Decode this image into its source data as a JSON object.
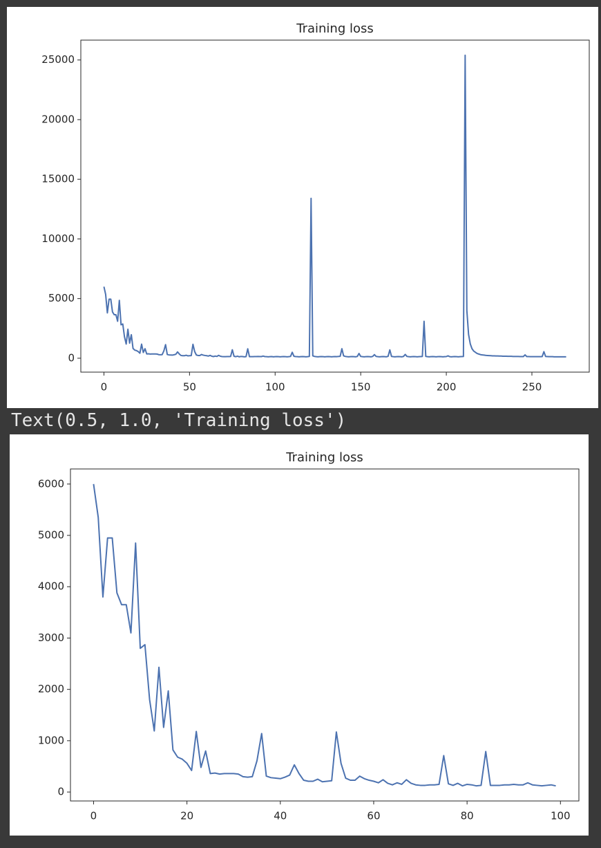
{
  "chart_data": [
    {
      "type": "line",
      "title": "Training loss",
      "color": "#4c72b0",
      "xlim": [
        -13.5,
        283.5
      ],
      "ylim": [
        -1165,
        26665
      ],
      "xticks": [
        0,
        50,
        100,
        150,
        200,
        250
      ],
      "yticks": [
        0,
        5000,
        10000,
        15000,
        20000,
        25000
      ],
      "x": [
        0,
        1,
        2,
        3,
        4,
        5,
        6,
        7,
        8,
        9,
        10,
        11,
        12,
        13,
        14,
        15,
        16,
        17,
        18,
        19,
        20,
        21,
        22,
        23,
        24,
        25,
        26,
        27,
        28,
        29,
        30,
        31,
        32,
        33,
        34,
        35,
        36,
        37,
        38,
        39,
        40,
        41,
        42,
        43,
        44,
        45,
        46,
        47,
        48,
        49,
        50,
        51,
        52,
        53,
        54,
        55,
        56,
        57,
        58,
        59,
        60,
        61,
        62,
        63,
        64,
        65,
        66,
        67,
        68,
        69,
        70,
        71,
        72,
        73,
        74,
        75,
        76,
        77,
        78,
        79,
        80,
        81,
        82,
        83,
        84,
        85,
        86,
        87,
        88,
        89,
        90,
        91,
        92,
        93,
        94,
        95,
        96,
        97,
        98,
        99,
        100,
        101,
        102,
        103,
        104,
        105,
        106,
        107,
        108,
        109,
        110,
        111,
        112,
        113,
        114,
        115,
        116,
        117,
        118,
        119,
        120,
        121,
        122,
        123,
        124,
        125,
        126,
        127,
        128,
        129,
        130,
        131,
        132,
        133,
        134,
        135,
        136,
        137,
        138,
        139,
        140,
        141,
        142,
        143,
        144,
        145,
        146,
        147,
        148,
        149,
        150,
        151,
        152,
        153,
        154,
        155,
        156,
        157,
        158,
        159,
        160,
        161,
        162,
        163,
        164,
        165,
        166,
        167,
        168,
        169,
        170,
        171,
        172,
        173,
        174,
        175,
        176,
        177,
        178,
        179,
        180,
        181,
        182,
        183,
        184,
        185,
        186,
        187,
        188,
        189,
        190,
        191,
        192,
        193,
        194,
        195,
        196,
        197,
        198,
        199,
        200,
        201,
        202,
        203,
        204,
        205,
        206,
        207,
        208,
        209,
        210,
        211,
        212,
        213,
        214,
        215,
        216,
        217,
        218,
        219,
        220,
        221,
        222,
        223,
        224,
        225,
        226,
        227,
        228,
        229,
        230,
        231,
        232,
        233,
        234,
        235,
        236,
        237,
        238,
        239,
        240,
        241,
        242,
        243,
        244,
        245,
        246,
        247,
        248,
        249,
        250,
        251,
        252,
        253,
        254,
        255,
        256,
        257,
        258,
        259,
        260,
        261,
        262,
        263,
        264,
        265,
        266,
        267,
        268,
        269,
        270
      ],
      "values": [
        6000,
        5350,
        3800,
        4950,
        4950,
        3880,
        3650,
        3650,
        3100,
        4850,
        2800,
        2870,
        1800,
        1190,
        2430,
        1260,
        1970,
        820,
        680,
        640,
        560,
        420,
        1180,
        480,
        800,
        360,
        370,
        350,
        360,
        360,
        360,
        350,
        300,
        290,
        300,
        610,
        1140,
        310,
        280,
        270,
        260,
        290,
        330,
        530,
        360,
        230,
        210,
        210,
        250,
        200,
        210,
        220,
        1170,
        560,
        270,
        230,
        230,
        310,
        260,
        230,
        210,
        180,
        240,
        170,
        140,
        180,
        150,
        240,
        170,
        140,
        130,
        130,
        140,
        140,
        150,
        710,
        160,
        130,
        170,
        120,
        150,
        140,
        120,
        130,
        790,
        130,
        130,
        130,
        140,
        140,
        150,
        140,
        140,
        180,
        140,
        130,
        120,
        130,
        140,
        120,
        130,
        140,
        130,
        120,
        130,
        140,
        130,
        120,
        130,
        150,
        500,
        160,
        140,
        130,
        120,
        130,
        140,
        130,
        120,
        130,
        150,
        13400,
        200,
        150,
        130,
        120,
        130,
        140,
        130,
        120,
        130,
        140,
        130,
        120,
        130,
        140,
        130,
        150,
        160,
        800,
        200,
        150,
        130,
        120,
        130,
        140,
        130,
        120,
        150,
        400,
        150,
        130,
        120,
        130,
        140,
        130,
        120,
        150,
        300,
        150,
        130,
        120,
        130,
        140,
        130,
        120,
        160,
        700,
        150,
        130,
        120,
        130,
        140,
        130,
        120,
        150,
        320,
        150,
        130,
        120,
        130,
        140,
        130,
        120,
        130,
        140,
        150,
        3100,
        150,
        130,
        120,
        130,
        140,
        130,
        120,
        130,
        140,
        130,
        120,
        130,
        140,
        200,
        130,
        120,
        130,
        140,
        130,
        120,
        130,
        140,
        150,
        25400,
        4000,
        2000,
        1200,
        800,
        600,
        500,
        400,
        350,
        300,
        280,
        260,
        240,
        230,
        220,
        210,
        200,
        200,
        190,
        190,
        180,
        180,
        170,
        170,
        170,
        160,
        160,
        160,
        150,
        150,
        150,
        150,
        140,
        140,
        140,
        280,
        140,
        140,
        130,
        130,
        130,
        130,
        130,
        130,
        130,
        140,
        550,
        150,
        140,
        130,
        130,
        130,
        120,
        120,
        120,
        120,
        120,
        120,
        120,
        120
      ]
    },
    {
      "type": "line",
      "title": "Training loss",
      "color": "#4c72b0",
      "xlim": [
        -4.95,
        103.95
      ],
      "ylim": [
        -174,
        6294
      ],
      "xticks": [
        0,
        20,
        40,
        60,
        80,
        100
      ],
      "yticks": [
        0,
        1000,
        2000,
        3000,
        4000,
        5000,
        6000
      ],
      "x": [
        0,
        1,
        2,
        3,
        4,
        5,
        6,
        7,
        8,
        9,
        10,
        11,
        12,
        13,
        14,
        15,
        16,
        17,
        18,
        19,
        20,
        21,
        22,
        23,
        24,
        25,
        26,
        27,
        28,
        29,
        30,
        31,
        32,
        33,
        34,
        35,
        36,
        37,
        38,
        39,
        40,
        41,
        42,
        43,
        44,
        45,
        46,
        47,
        48,
        49,
        50,
        51,
        52,
        53,
        54,
        55,
        56,
        57,
        58,
        59,
        60,
        61,
        62,
        63,
        64,
        65,
        66,
        67,
        68,
        69,
        70,
        71,
        72,
        73,
        74,
        75,
        76,
        77,
        78,
        79,
        80,
        81,
        82,
        83,
        84,
        85,
        86,
        87,
        88,
        89,
        90,
        91,
        92,
        93,
        94,
        95,
        96,
        97,
        98,
        99
      ],
      "values": [
        6000,
        5350,
        3800,
        4950,
        4950,
        3880,
        3650,
        3650,
        3100,
        4850,
        2800,
        2870,
        1800,
        1190,
        2430,
        1260,
        1970,
        820,
        680,
        640,
        560,
        420,
        1180,
        480,
        800,
        360,
        370,
        350,
        360,
        360,
        360,
        350,
        300,
        290,
        300,
        610,
        1140,
        310,
        280,
        270,
        260,
        290,
        330,
        530,
        360,
        230,
        210,
        210,
        250,
        200,
        210,
        220,
        1170,
        560,
        270,
        230,
        230,
        310,
        260,
        230,
        210,
        180,
        240,
        170,
        140,
        180,
        150,
        240,
        170,
        140,
        130,
        130,
        140,
        140,
        150,
        710,
        160,
        130,
        170,
        120,
        150,
        140,
        120,
        130,
        790,
        130,
        130,
        130,
        140,
        140,
        150,
        140,
        140,
        180,
        140,
        130,
        120,
        130,
        140,
        120
      ]
    }
  ],
  "output_text": "Text(0.5, 1.0, 'Training loss')"
}
